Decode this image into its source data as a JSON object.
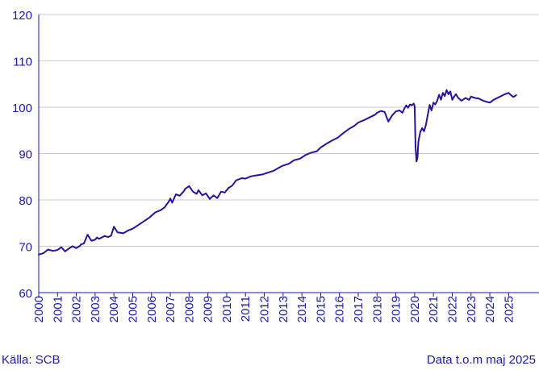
{
  "chart_data": {
    "type": "line",
    "title": "",
    "xlabel": "",
    "ylabel": "",
    "ylim": [
      60,
      120
    ],
    "yticks": [
      "60",
      "70",
      "80",
      "90",
      "100",
      "110",
      "120"
    ],
    "xlim": [
      2000,
      2025.5
    ],
    "xticks": [
      "2000",
      "2001",
      "2002",
      "2003",
      "2004",
      "2005",
      "2006",
      "2007",
      "2008",
      "2009",
      "2010",
      "2011",
      "2012",
      "2013",
      "2014",
      "2015",
      "2016",
      "2017",
      "2018",
      "2019",
      "2020",
      "2021",
      "2022",
      "2023",
      "2024",
      "2025"
    ],
    "grid": "horizontal",
    "line_color": "#2a0fa0",
    "series": [
      {
        "x": [
          2000.0,
          2000.25,
          2000.5,
          2000.75,
          2001.0,
          2001.2,
          2001.4,
          2001.6,
          2001.8,
          2002.0,
          2002.2,
          2002.25,
          2002.4,
          2002.6,
          2002.8,
          2003.0,
          2003.1,
          2003.2,
          2003.3,
          2003.5,
          2003.7,
          2003.85,
          2004.0,
          2004.2,
          2004.5,
          2004.8,
          2005.0,
          2005.3,
          2005.6,
          2005.9,
          2006.2,
          2006.5,
          2006.7,
          2006.8,
          2006.9,
          2007.0,
          2007.1,
          2007.3,
          2007.5,
          2007.7,
          2007.8,
          2008.0,
          2008.2,
          2008.4,
          2008.5,
          2008.7,
          2008.9,
          2009.1,
          2009.3,
          2009.5,
          2009.7,
          2009.9,
          2010.1,
          2010.3,
          2010.5,
          2010.8,
          2011.0,
          2011.3,
          2011.6,
          2011.9,
          2012.2,
          2012.5,
          2012.8,
          2013.0,
          2013.3,
          2013.6,
          2013.9,
          2014.2,
          2014.5,
          2014.8,
          2015.0,
          2015.3,
          2015.6,
          2015.9,
          2016.2,
          2016.5,
          2016.8,
          2017.0,
          2017.3,
          2017.6,
          2017.9,
          2018.0,
          2018.2,
          2018.4,
          2018.6,
          2018.8,
          2019.0,
          2019.2,
          2019.35,
          2019.45,
          2019.55,
          2019.65,
          2019.75,
          2019.85,
          2019.95,
          2020.0,
          2020.05,
          2020.1,
          2020.15,
          2020.2,
          2020.3,
          2020.4,
          2020.5,
          2020.6,
          2020.7,
          2020.8,
          2020.9,
          2021.0,
          2021.1,
          2021.2,
          2021.3,
          2021.4,
          2021.5,
          2021.6,
          2021.7,
          2021.8,
          2021.9,
          2022.0,
          2022.1,
          2022.2,
          2022.3,
          2022.4,
          2022.5,
          2022.7,
          2022.9,
          2023.0,
          2023.2,
          2023.4,
          2023.6,
          2023.8,
          2024.0,
          2024.2,
          2024.4,
          2024.6,
          2024.8,
          2025.0,
          2025.1,
          2025.25,
          2025.4
        ],
        "values": [
          68.2,
          68.5,
          69.3,
          69.0,
          69.2,
          69.8,
          68.9,
          69.5,
          70.0,
          69.6,
          70.1,
          70.4,
          70.6,
          72.5,
          71.2,
          71.4,
          71.9,
          71.6,
          71.8,
          72.2,
          72.0,
          72.3,
          74.2,
          73.0,
          72.8,
          73.5,
          73.8,
          74.6,
          75.4,
          76.2,
          77.3,
          77.8,
          78.4,
          79.0,
          79.5,
          80.3,
          79.4,
          81.2,
          80.9,
          81.8,
          82.4,
          83.0,
          81.8,
          81.3,
          82.1,
          81.0,
          81.4,
          80.2,
          81.0,
          80.4,
          81.8,
          81.6,
          82.6,
          83.1,
          84.2,
          84.7,
          84.6,
          85.1,
          85.3,
          85.5,
          85.9,
          86.3,
          87.0,
          87.4,
          87.8,
          88.6,
          88.9,
          89.7,
          90.2,
          90.5,
          91.3,
          92.1,
          92.8,
          93.4,
          94.4,
          95.3,
          96.0,
          96.7,
          97.2,
          97.8,
          98.4,
          98.8,
          99.2,
          99.0,
          96.9,
          98.2,
          99.1,
          99.3,
          98.8,
          99.7,
          100.4,
          99.9,
          100.6,
          100.4,
          100.8,
          100.2,
          91.5,
          88.3,
          89.2,
          92.5,
          94.7,
          95.5,
          94.8,
          96.2,
          98.4,
          100.5,
          99.3,
          101.0,
          100.6,
          101.4,
          102.7,
          101.6,
          103.1,
          102.4,
          103.7,
          102.8,
          103.4,
          101.6,
          102.3,
          102.8,
          102.1,
          101.7,
          101.4,
          102.0,
          101.6,
          102.3,
          102.0,
          101.9,
          101.5,
          101.2,
          101.0,
          101.6,
          102.0,
          102.4,
          102.8,
          103.1,
          102.7,
          102.2,
          102.6
        ]
      }
    ]
  },
  "footer": {
    "source": "Källa: SCB",
    "data_note": "Data t.o.m maj 2025"
  }
}
